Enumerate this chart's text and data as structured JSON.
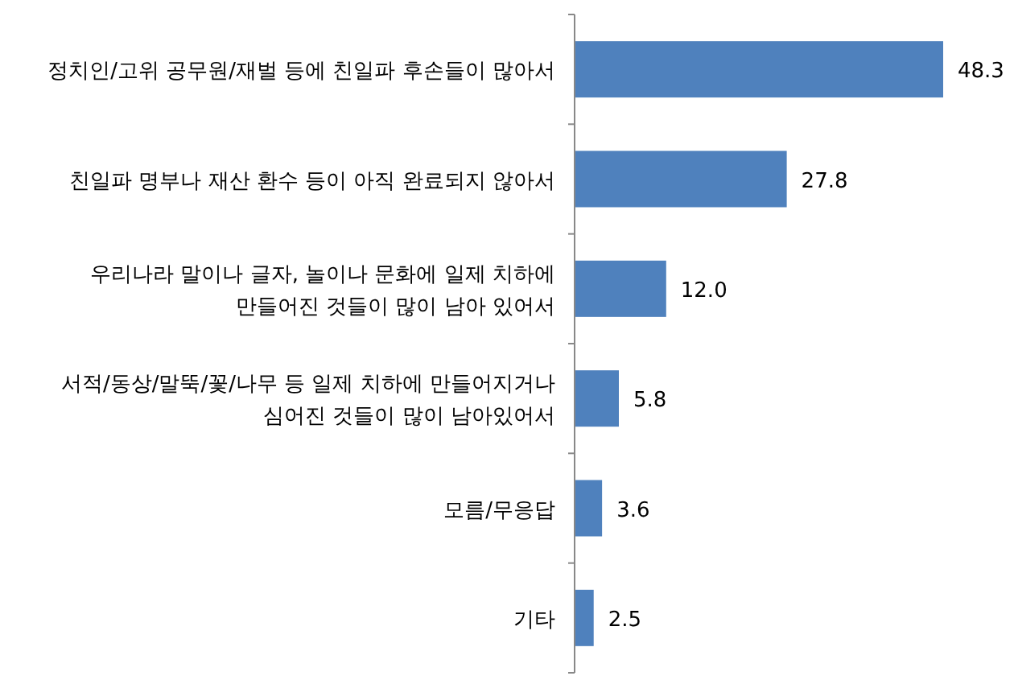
{
  "chart_data": {
    "type": "bar",
    "orientation": "horizontal",
    "color": "#4f81bd",
    "categories": [
      "정치인/고위 공무원/재벌 등에 친일파 후손들이 많아서",
      "친일파 명부나 재산 환수 등이 아직 완료되지 않아서",
      "우리나라 말이나 글자, 놀이나 문화에 일제 치하에 만들어진 것들이 많이 남아 있어서",
      "서적/동상/말뚝/꽃/나무 등 일제 치하에 만들어지거나 심어진 것들이 많이 남아있어서",
      "모름/무응답",
      "기타"
    ],
    "values": [
      48.3,
      27.8,
      12.0,
      5.8,
      3.6,
      2.5
    ],
    "value_labels": [
      "48.3",
      "27.8",
      "12.0",
      "5.8",
      "3.6",
      "2.5"
    ]
  }
}
